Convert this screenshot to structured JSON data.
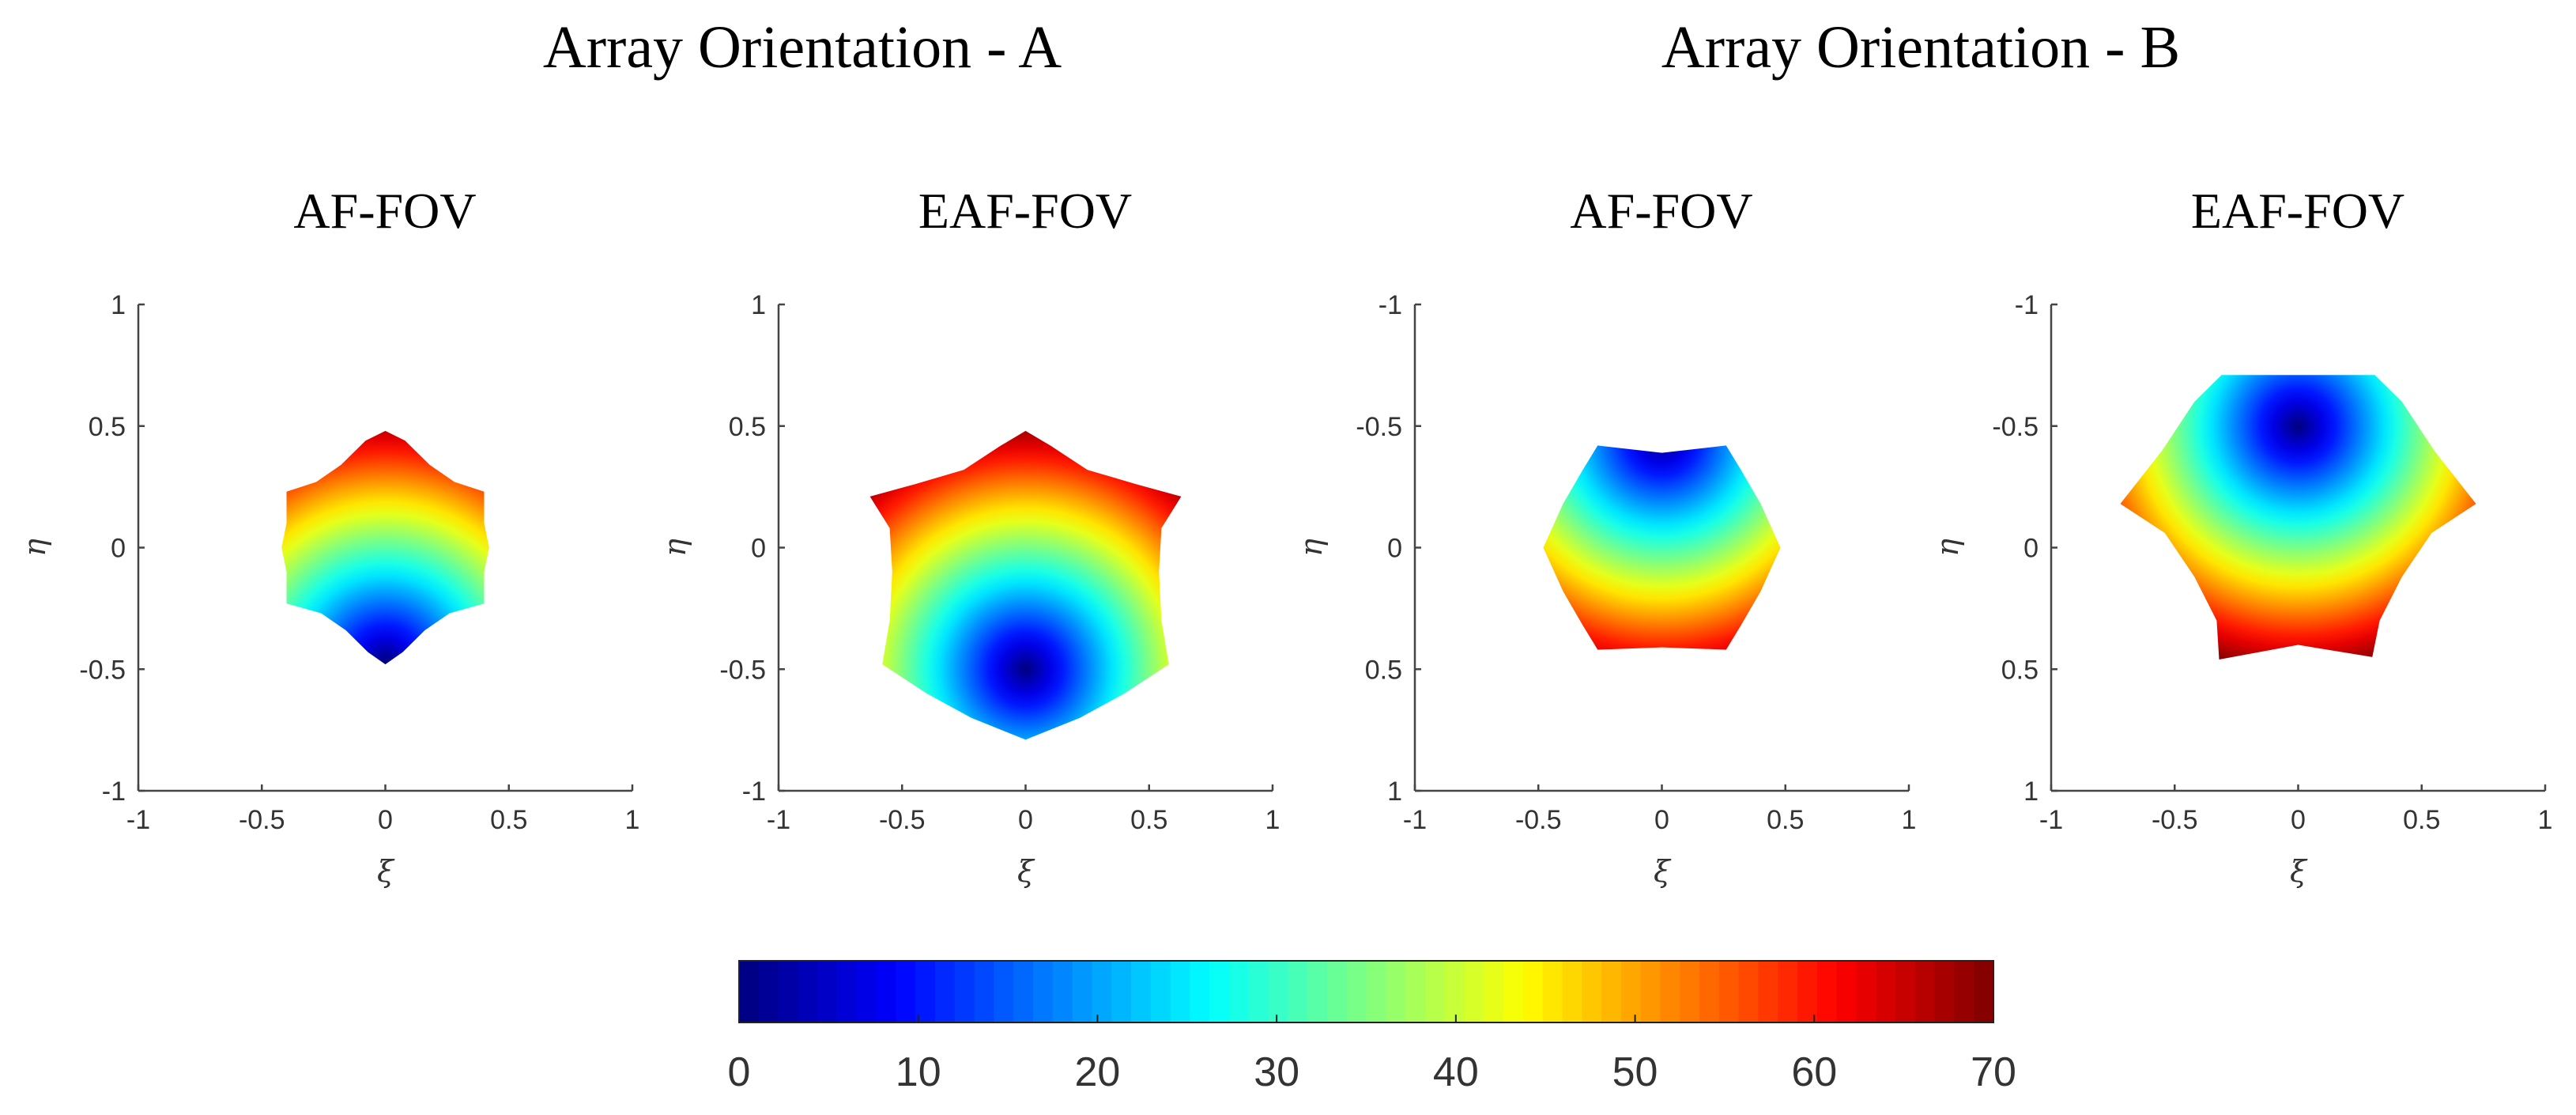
{
  "groups": [
    {
      "title": "Array Orientation - A"
    },
    {
      "title": "Array Orientation - B"
    }
  ],
  "chart_data": [
    {
      "type": "heatmap",
      "group": "Array Orientation - A",
      "title": "AF-FOV",
      "xlabel": "ξ",
      "ylabel": "η",
      "xlim": [
        -1,
        1
      ],
      "ylim": [
        -1,
        1
      ],
      "y_reversed": false,
      "xticks": [
        -1,
        -0.5,
        0,
        0.5,
        1
      ],
      "yticks": [
        -1,
        -0.5,
        0,
        0.5,
        1
      ],
      "color_center": [
        0,
        -0.47
      ],
      "region_outline": [
        [
          0,
          0.48
        ],
        [
          0.08,
          0.44
        ],
        [
          0.18,
          0.34
        ],
        [
          0.28,
          0.27
        ],
        [
          0.4,
          0.23
        ],
        [
          0.4,
          0.1
        ],
        [
          0.42,
          0
        ],
        [
          0.4,
          -0.1
        ],
        [
          0.4,
          -0.23
        ],
        [
          0.26,
          -0.27
        ],
        [
          0.16,
          -0.34
        ],
        [
          0.07,
          -0.43
        ],
        [
          0,
          -0.48
        ],
        [
          -0.07,
          -0.43
        ],
        [
          -0.16,
          -0.34
        ],
        [
          -0.26,
          -0.27
        ],
        [
          -0.4,
          -0.23
        ],
        [
          -0.4,
          -0.1
        ],
        [
          -0.42,
          0
        ],
        [
          -0.4,
          0.1
        ],
        [
          -0.4,
          0.23
        ],
        [
          -0.28,
          0.27
        ],
        [
          -0.18,
          0.34
        ],
        [
          -0.08,
          0.44
        ]
      ]
    },
    {
      "type": "heatmap",
      "group": "Array Orientation - A",
      "title": "EAF-FOV",
      "xlabel": "ξ",
      "ylabel": "η",
      "xlim": [
        -1,
        1
      ],
      "ylim": [
        -1,
        1
      ],
      "y_reversed": false,
      "xticks": [
        -1,
        -0.5,
        0,
        0.5,
        1
      ],
      "yticks": [
        -1,
        -0.5,
        0,
        0.5,
        1
      ],
      "color_center": [
        0,
        -0.5
      ],
      "region_outline": [
        [
          0,
          0.48
        ],
        [
          0.1,
          0.42
        ],
        [
          0.25,
          0.32
        ],
        [
          0.45,
          0.26
        ],
        [
          0.63,
          0.21
        ],
        [
          0.55,
          0.08
        ],
        [
          0.54,
          -0.1
        ],
        [
          0.55,
          -0.3
        ],
        [
          0.58,
          -0.48
        ],
        [
          0.4,
          -0.6
        ],
        [
          0.22,
          -0.7
        ],
        [
          0,
          -0.79
        ],
        [
          -0.22,
          -0.7
        ],
        [
          -0.4,
          -0.6
        ],
        [
          -0.58,
          -0.48
        ],
        [
          -0.55,
          -0.3
        ],
        [
          -0.54,
          -0.1
        ],
        [
          -0.55,
          0.08
        ],
        [
          -0.63,
          0.21
        ],
        [
          -0.45,
          0.26
        ],
        [
          -0.25,
          0.32
        ],
        [
          -0.1,
          0.42
        ]
      ]
    },
    {
      "type": "heatmap",
      "group": "Array Orientation - B",
      "title": "AF-FOV",
      "xlabel": "ξ",
      "ylabel": "η",
      "xlim": [
        -1,
        1
      ],
      "ylim": [
        -1,
        1
      ],
      "y_reversed": true,
      "xticks": [
        -1,
        -0.5,
        0,
        0.5,
        1
      ],
      "yticks": [
        -1,
        -0.5,
        0,
        0.5,
        1
      ],
      "color_center": [
        0,
        -0.45
      ],
      "region_outline": [
        [
          -0.26,
          0.42
        ],
        [
          0,
          0.41
        ],
        [
          0.26,
          0.42
        ],
        [
          0.32,
          0.32
        ],
        [
          0.4,
          0.18
        ],
        [
          0.48,
          0
        ],
        [
          0.4,
          -0.18
        ],
        [
          0.32,
          -0.32
        ],
        [
          0.26,
          -0.42
        ],
        [
          0,
          -0.39
        ],
        [
          -0.26,
          -0.42
        ],
        [
          -0.32,
          -0.32
        ],
        [
          -0.4,
          -0.18
        ],
        [
          -0.48,
          0
        ],
        [
          -0.4,
          0.18
        ],
        [
          -0.32,
          0.32
        ]
      ]
    },
    {
      "type": "heatmap",
      "group": "Array Orientation - B",
      "title": "EAF-FOV",
      "xlabel": "ξ",
      "ylabel": "η",
      "xlim": [
        -1,
        1
      ],
      "ylim": [
        -1,
        1
      ],
      "y_reversed": true,
      "xticks": [
        -1,
        -0.5,
        0,
        0.5,
        1
      ],
      "yticks": [
        -1,
        -0.5,
        0,
        0.5,
        1
      ],
      "color_center": [
        0,
        -0.5
      ],
      "region_outline": [
        [
          -0.32,
          0.46
        ],
        [
          0,
          0.4
        ],
        [
          0.3,
          0.45
        ],
        [
          0.33,
          0.3
        ],
        [
          0.42,
          0.12
        ],
        [
          0.54,
          -0.06
        ],
        [
          0.72,
          -0.18
        ],
        [
          0.55,
          -0.4
        ],
        [
          0.42,
          -0.6
        ],
        [
          0.31,
          -0.71
        ],
        [
          0,
          -0.71
        ],
        [
          -0.31,
          -0.71
        ],
        [
          -0.42,
          -0.6
        ],
        [
          -0.55,
          -0.4
        ],
        [
          -0.72,
          -0.18
        ],
        [
          -0.54,
          -0.06
        ],
        [
          -0.42,
          0.12
        ],
        [
          -0.33,
          0.3
        ]
      ]
    }
  ],
  "colorbar": {
    "min": 0,
    "max": 70,
    "ticks": [
      0,
      10,
      20,
      30,
      40,
      50,
      60,
      70
    ],
    "colormap": "jet"
  }
}
